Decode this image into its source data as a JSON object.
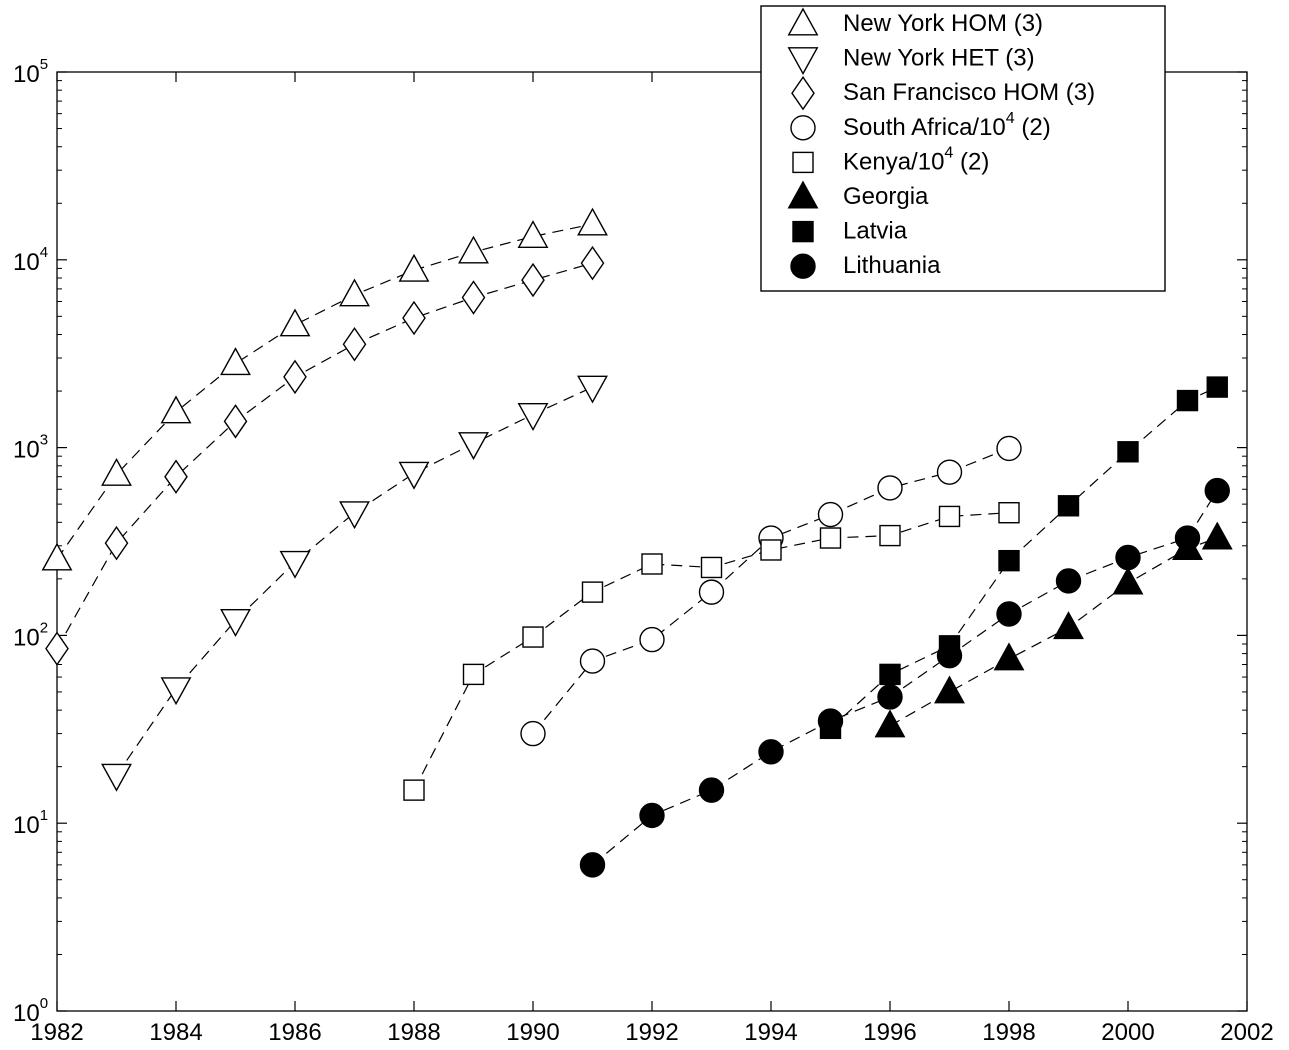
{
  "chart_data": {
    "type": "scatter",
    "title": "",
    "xlabel": "",
    "ylabel": "",
    "xlim": [
      1982,
      2002
    ],
    "ylim": [
      1,
      100000
    ],
    "yscale": "log",
    "grid": false,
    "legend_position": "top-right",
    "x_ticks": [
      "1982",
      "1984",
      "1986",
      "1988",
      "1990",
      "1992",
      "1994",
      "1996",
      "1998",
      "2000",
      "2002"
    ],
    "y_ticks": [
      {
        "base": "10",
        "exp": "0"
      },
      {
        "base": "10",
        "exp": "1"
      },
      {
        "base": "10",
        "exp": "2"
      },
      {
        "base": "10",
        "exp": "3"
      },
      {
        "base": "10",
        "exp": "4"
      },
      {
        "base": "10",
        "exp": "5"
      }
    ],
    "series": [
      {
        "label": "New York HOM (3)",
        "marker": "triangle-up",
        "filled": false,
        "x": [
          1982,
          1983,
          1984,
          1985,
          1986,
          1987,
          1988,
          1989,
          1990,
          1991
        ],
        "y": [
          255,
          720,
          1550,
          2800,
          4500,
          6500,
          8800,
          11000,
          13300,
          15500
        ]
      },
      {
        "label": "New York HET (3)",
        "marker": "triangle-down",
        "filled": false,
        "x": [
          1983,
          1984,
          1985,
          1986,
          1987,
          1988,
          1989,
          1990,
          1991
        ],
        "y": [
          18,
          52,
          120,
          245,
          450,
          730,
          1050,
          1500,
          2100
        ]
      },
      {
        "label": "San Francisco HOM (3)",
        "marker": "diamond",
        "filled": false,
        "x": [
          1982,
          1983,
          1984,
          1985,
          1986,
          1987,
          1988,
          1989,
          1990,
          1991
        ],
        "y": [
          85,
          310,
          700,
          1380,
          2380,
          3550,
          4900,
          6300,
          7800,
          9600
        ]
      },
      {
        "label": "South Africa/10",
        "label_sup": "4",
        "label_suffix": " (2)",
        "marker": "circle",
        "filled": false,
        "x": [
          1990,
          1991,
          1992,
          1993,
          1994,
          1995,
          1996,
          1997,
          1998
        ],
        "y": [
          30,
          73,
          95,
          170,
          330,
          440,
          610,
          740,
          990
        ]
      },
      {
        "label": "Kenya/10",
        "label_sup": "4",
        "label_suffix": " (2)",
        "marker": "square",
        "filled": false,
        "x": [
          1988,
          1989,
          1990,
          1991,
          1992,
          1993,
          1994,
          1995,
          1996,
          1997,
          1998
        ],
        "y": [
          15,
          62,
          98,
          170,
          240,
          230,
          285,
          330,
          340,
          430,
          450
        ]
      },
      {
        "label": "Georgia",
        "marker": "triangle-up",
        "filled": true,
        "x": [
          1996,
          1997,
          1998,
          1999,
          2000,
          2001,
          2001.5
        ],
        "y": [
          33,
          50,
          75,
          110,
          190,
          290,
          330
        ]
      },
      {
        "label": "Latvia",
        "marker": "square",
        "filled": true,
        "x": [
          1995,
          1996,
          1997,
          1998,
          1999,
          2000,
          2001,
          2001.5
        ],
        "y": [
          32,
          62,
          88,
          250,
          490,
          950,
          1780,
          2100
        ]
      },
      {
        "label": "Lithuania",
        "marker": "circle",
        "filled": true,
        "x": [
          1991,
          1992,
          1993,
          1994,
          1995,
          1996,
          1997,
          1998,
          1999,
          2000,
          2001,
          2001.5
        ],
        "y": [
          6,
          11,
          15,
          24,
          35,
          47,
          78,
          130,
          195,
          260,
          330,
          590
        ]
      }
    ]
  }
}
